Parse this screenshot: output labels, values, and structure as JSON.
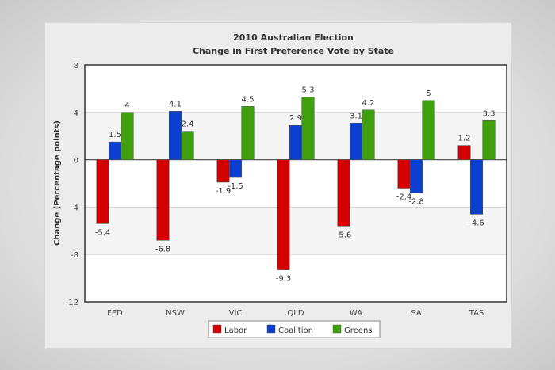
{
  "chart_data": {
    "type": "bar",
    "title": "2010 Australian Election",
    "subtitle": "Change in First Preference Vote by State",
    "ylabel": "Change (Percentage points)",
    "xlabel": "",
    "ylim": [
      -12,
      8
    ],
    "yticks": [
      8,
      4,
      0,
      -4,
      -8,
      -12
    ],
    "grid": true,
    "legend_position": "bottom",
    "categories": [
      "FED",
      "NSW",
      "VIC",
      "QLD",
      "WA",
      "SA",
      "TAS"
    ],
    "series": [
      {
        "name": "Labor",
        "color": "#d40000",
        "values": [
          -5.4,
          -6.8,
          -1.9,
          -9.3,
          -5.6,
          -2.4,
          1.2
        ]
      },
      {
        "name": "Coalition",
        "color": "#0a3fcf",
        "values": [
          1.5,
          4.1,
          -1.5,
          2.9,
          3.1,
          -2.8,
          -4.6
        ]
      },
      {
        "name": "Greens",
        "color": "#3fa00c",
        "values": [
          4,
          2.4,
          4.5,
          5.3,
          4.2,
          5,
          3.3
        ]
      }
    ]
  }
}
